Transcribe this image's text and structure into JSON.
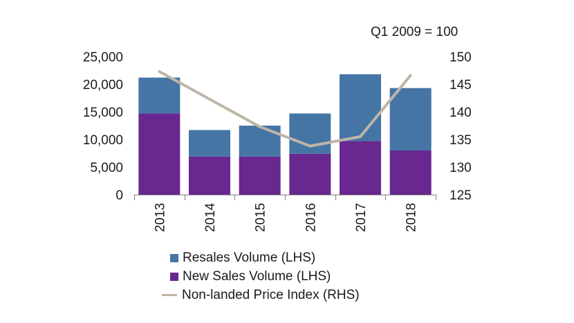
{
  "chart_data": {
    "type": "bar",
    "stacked": true,
    "categories": [
      "2013",
      "2014",
      "2015",
      "2016",
      "2017",
      "2018"
    ],
    "series": [
      {
        "name": "New Sales Volume (LHS)",
        "axis": "left",
        "kind": "bar",
        "values": [
          14700,
          6900,
          6900,
          7400,
          9700,
          8000
        ],
        "color": "#68288f"
      },
      {
        "name": "Resales Volume (LHS)",
        "axis": "left",
        "kind": "bar",
        "values": [
          6500,
          4800,
          5600,
          7300,
          12100,
          11300
        ],
        "color": "#4475a5"
      },
      {
        "name": "Non-landed Price Index (RHS)",
        "axis": "right",
        "kind": "line",
        "values": [
          147.3,
          142.3,
          137.3,
          133.8,
          135.5,
          146.6
        ],
        "color": "#bfb5a7"
      }
    ],
    "left_axis": {
      "ylim": [
        0,
        25000
      ],
      "ticks": [
        "0",
        "5,000",
        "10,000",
        "15,000",
        "20,000",
        "25,000"
      ]
    },
    "right_axis": {
      "ylim": [
        125,
        150
      ],
      "ticks": [
        "125",
        "130",
        "135",
        "140",
        "145",
        "150"
      ],
      "note": "Q1 2009 = 100"
    },
    "legend_position": "bottom",
    "grid": false
  }
}
